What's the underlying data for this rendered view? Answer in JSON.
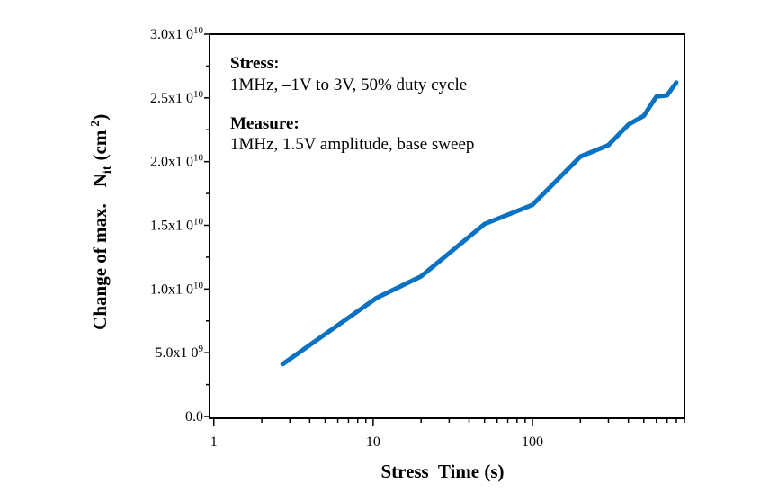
{
  "chart_data": {
    "type": "line",
    "xscale": "log",
    "xlabel": "Stress  Time (s)",
    "ylabel_prefix": "Change of max.",
    "ylabel_symbol": "N",
    "ylabel_subscript": "it",
    "ylabel_unit_open": "(cm",
    "ylabel_unit_sup": "2",
    "ylabel_unit_close": ")",
    "xlim": [
      0.94,
      900
    ],
    "ylim": [
      0,
      30000000000.0
    ],
    "xticks": [
      {
        "value": 1,
        "label": "1"
      },
      {
        "value": 10,
        "label": "10"
      },
      {
        "value": 100,
        "label": "100"
      }
    ],
    "yticks": [
      {
        "value": 0,
        "mant": "0.0",
        "exp": ""
      },
      {
        "value": 5000000000.0,
        "mant": "5.0x1 0",
        "exp": "9"
      },
      {
        "value": 10000000000.0,
        "mant": "1.0x1 0",
        "exp": "10"
      },
      {
        "value": 15000000000.0,
        "mant": "1.5x1 0",
        "exp": "10"
      },
      {
        "value": 20000000000.0,
        "mant": "2.0x1 0",
        "exp": "10"
      },
      {
        "value": 25000000000.0,
        "mant": "2.5x1 0",
        "exp": "10"
      },
      {
        "value": 30000000000.0,
        "mant": "3.0x1 0",
        "exp": "10"
      }
    ],
    "grid": false,
    "series": [
      {
        "color": "#0a72c2",
        "x": [
          2.7,
          10.5,
          20,
          50,
          100,
          200,
          300,
          400,
          500,
          600,
          700,
          800
        ],
        "y": [
          4100000000.0,
          9300000000.0,
          11000000000.0,
          15100000000.0,
          16600000000.0,
          20400000000.0,
          21300000000.0,
          22900000000.0,
          23600000000.0,
          25100000000.0,
          25200000000.0,
          26200000000.0
        ]
      }
    ],
    "annotations": {
      "stress_title": "Stress:",
      "stress_text": "1MHz, –1V to 3V, 50% duty cycle",
      "measure_title": "Measure:",
      "measure_text": "1MHz, 1.5V amplitude, base sweep"
    }
  }
}
